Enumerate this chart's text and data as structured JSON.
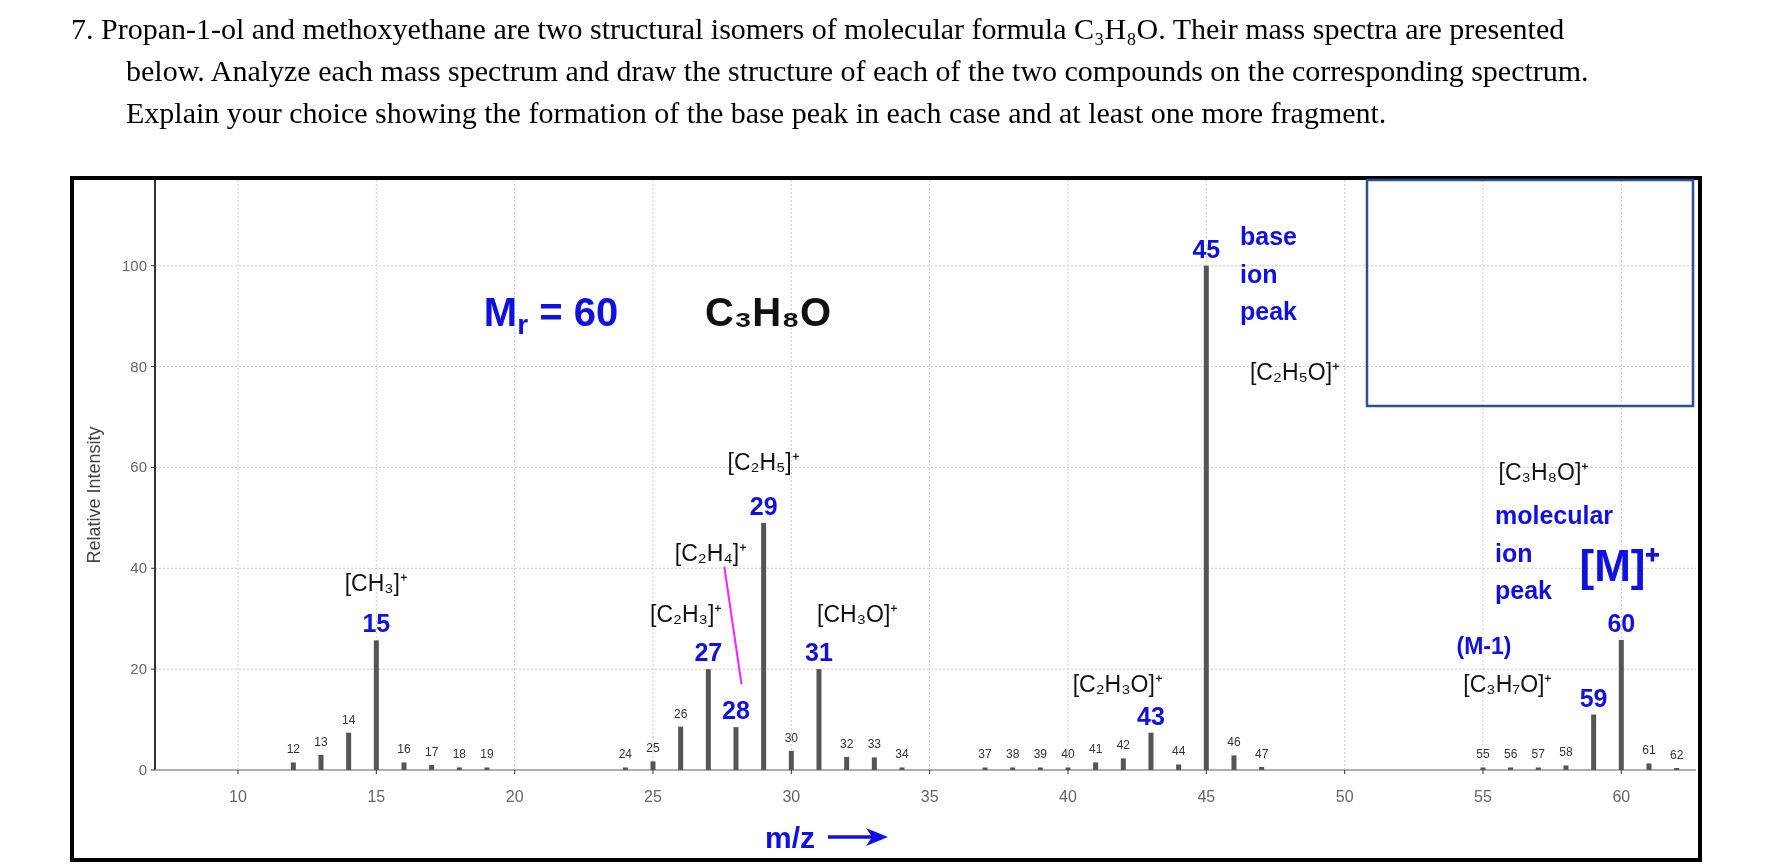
{
  "chart_data": {
    "type": "bar",
    "title": "7. Propan-1-ol and methoxyethane are two structural isomers of molecular formula C₃H₈O. Their mass spectra are presented below. Analyze each mass spectrum and draw the structure of each of the two compounds on the corresponding spectrum. Explain your choice showing the formation of the base peak in each case and at least one more fragment.",
    "xlabel": "m/z",
    "ylabel": "Relative Intensity",
    "xlim": [
      7,
      62.7
    ],
    "xticks": [
      10,
      15,
      20,
      25,
      30,
      35,
      40,
      45,
      50,
      55,
      60
    ],
    "ylim": [
      0,
      117
    ],
    "yticks": [
      0,
      20,
      40,
      60,
      80,
      100
    ],
    "grid": true,
    "series": [
      {
        "color": "#555555",
        "x": [
          12,
          13,
          14,
          16,
          17,
          18,
          19,
          24,
          25,
          26,
          30,
          32,
          33,
          34,
          37,
          38,
          39,
          40,
          41,
          42,
          44,
          46,
          47,
          55,
          56,
          57,
          58,
          61,
          62
        ],
        "values": [
          1.5,
          3,
          7.4,
          1.5,
          1,
          0.5,
          0.5,
          0.5,
          1.7,
          8.6,
          3.8,
          2.6,
          2.5,
          0.5,
          0.5,
          0.5,
          0.5,
          0.5,
          1.5,
          2.3,
          1.1,
          2.9,
          0.6,
          0.5,
          0.5,
          0.5,
          0.9,
          1.3,
          0.4
        ]
      },
      {
        "color": "#555555",
        "x": [
          15,
          27,
          28,
          29,
          31,
          43,
          45,
          59,
          60
        ],
        "values": [
          25.7,
          20,
          8.5,
          49,
          20,
          7.4,
          100,
          11,
          25.8
        ]
      }
    ],
    "annotations": [
      {
        "text": "12",
        "x": 12,
        "y": 1.5
      },
      {
        "text": "13",
        "x": 13,
        "y": 3
      },
      {
        "text": "14",
        "x": 14,
        "y": 7.4
      },
      {
        "text": "16",
        "x": 16,
        "y": 1.5
      },
      {
        "text": "17",
        "x": 17,
        "y": 1
      },
      {
        "text": "18",
        "x": 18,
        "y": 0.5
      },
      {
        "text": "19",
        "x": 19,
        "y": 0.5
      },
      {
        "text": "24",
        "x": 24,
        "y": 0.5
      },
      {
        "text": "25",
        "x": 25,
        "y": 1.7
      },
      {
        "text": "26",
        "x": 26,
        "y": 8.6
      },
      {
        "text": "30",
        "x": 30,
        "y": 3.8
      },
      {
        "text": "32",
        "x": 32,
        "y": 2.6
      },
      {
        "text": "33",
        "x": 33,
        "y": 2.5
      },
      {
        "text": "34",
        "x": 34,
        "y": 0.5
      },
      {
        "text": "37",
        "x": 37,
        "y": 0.5
      },
      {
        "text": "38",
        "x": 38,
        "y": 0.5
      },
      {
        "text": "39",
        "x": 39,
        "y": 0.5
      },
      {
        "text": "40",
        "x": 40,
        "y": 0.5
      },
      {
        "text": "41",
        "x": 41,
        "y": 1.5
      },
      {
        "text": "42",
        "x": 42,
        "y": 2.3
      },
      {
        "text": "44",
        "x": 44,
        "y": 1.1
      },
      {
        "text": "46",
        "x": 46,
        "y": 2.9
      },
      {
        "text": "47",
        "x": 47,
        "y": 0.6
      },
      {
        "text": "55",
        "x": 55,
        "y": 0.5
      },
      {
        "text": "56",
        "x": 56,
        "y": 0.5
      },
      {
        "text": "57",
        "x": 57,
        "y": 0.5
      },
      {
        "text": "58",
        "x": 58,
        "y": 0.9
      },
      {
        "text": "61",
        "x": 61,
        "y": 1.3
      },
      {
        "text": "62",
        "x": 62,
        "y": 0.4
      },
      {
        "text": "15",
        "x": 15,
        "y": 25.7
      },
      {
        "text": "27",
        "x": 27,
        "y": 20
      },
      {
        "text": "28",
        "x": 28,
        "y": 8.5
      },
      {
        "text": "29",
        "x": 29,
        "y": 49
      },
      {
        "text": "31",
        "x": 31,
        "y": 20
      },
      {
        "text": "43",
        "x": 43,
        "y": 7.4
      },
      {
        "text": "45",
        "x": 45,
        "y": 100
      },
      {
        "text": "59",
        "x": 59,
        "y": 11
      },
      {
        "text": "60",
        "x": 60,
        "y": 25.8
      },
      {
        "text": "[CH₃]⁺",
        "x": 15,
        "y": 25.7
      },
      {
        "text": "[C₂H₃]⁺",
        "x": 27,
        "y": 20
      },
      {
        "text": "[C₂H₅]⁺",
        "x": 29,
        "y": 49
      },
      {
        "text": "[CH₃O]⁺",
        "x": 31,
        "y": 20
      },
      {
        "text": "[C₂H₃O]⁺",
        "x": 43,
        "y": 7.4
      },
      {
        "text": "[C₃H₇O]⁺",
        "x": 59,
        "y": 11
      },
      "M$_{r}$ = 60",
      "C₃H₈O",
      "base ion peak",
      "molecular ion peak",
      "[M]⁺",
      "(M-1)",
      "[C₂H₄]⁺",
      "[C₂H₅O]⁺",
      "[C₃H₈O]⁺"
    ]
  }
}
